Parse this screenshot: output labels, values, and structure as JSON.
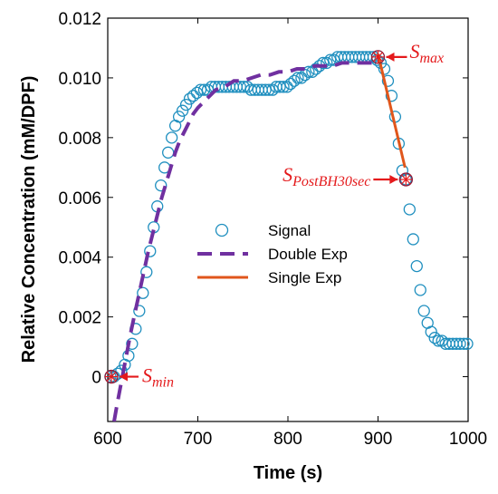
{
  "chart_data": {
    "type": "line",
    "xlabel": "Time (s)",
    "ylabel": "Relative Concentration (mM/DPF)",
    "xlim": [
      600,
      1000
    ],
    "ylim": [
      -0.0015,
      0.012
    ],
    "x_ticks": [
      600,
      700,
      800,
      900,
      1000
    ],
    "y_ticks": [
      0,
      0.002,
      0.004,
      0.006,
      0.008,
      0.01,
      0.012
    ],
    "y_tick_labels": [
      "0",
      "0.002",
      "0.004",
      "0.006",
      "0.008",
      "0.010",
      "0.012"
    ],
    "grid": false,
    "legend_position": "center",
    "series": [
      {
        "name": "Signal",
        "style": "circle-markers",
        "color": "#1f8fbf",
        "x": [
          603,
          607,
          611,
          615,
          619,
          623,
          627,
          631,
          635,
          639,
          643,
          647,
          651,
          655,
          659,
          663,
          667,
          671,
          675,
          679,
          683,
          687,
          691,
          695,
          699,
          703,
          707,
          711,
          715,
          719,
          723,
          727,
          731,
          735,
          739,
          743,
          747,
          751,
          755,
          759,
          763,
          767,
          771,
          775,
          779,
          783,
          787,
          791,
          795,
          799,
          803,
          807,
          811,
          815,
          819,
          823,
          827,
          831,
          835,
          839,
          843,
          847,
          851,
          855,
          859,
          863,
          867,
          871,
          875,
          879,
          883,
          887,
          891,
          895,
          899,
          903,
          907,
          911,
          915,
          919,
          923,
          927,
          931,
          935,
          939,
          943,
          947,
          951,
          955,
          959,
          963,
          967,
          971,
          975,
          979,
          983,
          987,
          991,
          995,
          999
        ],
        "y": [
          0.0,
          0.0,
          0.0001,
          0.0002,
          0.0004,
          0.0007,
          0.0011,
          0.0016,
          0.0022,
          0.0028,
          0.0035,
          0.0042,
          0.005,
          0.0057,
          0.0064,
          0.007,
          0.0075,
          0.008,
          0.0084,
          0.0087,
          0.0089,
          0.0091,
          0.0093,
          0.0094,
          0.0095,
          0.0096,
          0.0096,
          0.0096,
          0.0097,
          0.0097,
          0.0097,
          0.0097,
          0.0097,
          0.0097,
          0.0097,
          0.0097,
          0.0097,
          0.0097,
          0.0097,
          0.0096,
          0.0096,
          0.0096,
          0.0096,
          0.0096,
          0.0096,
          0.0096,
          0.0097,
          0.0097,
          0.0097,
          0.0097,
          0.0098,
          0.0099,
          0.01,
          0.01,
          0.0101,
          0.0102,
          0.0102,
          0.0103,
          0.0104,
          0.0105,
          0.0105,
          0.0106,
          0.0106,
          0.0107,
          0.0107,
          0.0107,
          0.0107,
          0.0107,
          0.0107,
          0.0107,
          0.0107,
          0.0107,
          0.0107,
          0.0107,
          0.0106,
          0.0105,
          0.0103,
          0.0099,
          0.0094,
          0.0087,
          0.0078,
          0.0069,
          0.0066,
          0.0056,
          0.0046,
          0.0037,
          0.0029,
          0.0022,
          0.0018,
          0.0015,
          0.0013,
          0.0012,
          0.0012,
          0.0011,
          0.0011,
          0.0011,
          0.0011,
          0.0011,
          0.0011,
          0.0011
        ]
      },
      {
        "name": "Double Exp",
        "style": "dashed-line",
        "color": "#7030a0",
        "x": [
          607,
          610,
          615,
          620,
          625,
          630,
          635,
          640,
          645,
          650,
          655,
          660,
          665,
          670,
          675,
          680,
          685,
          690,
          695,
          700,
          710,
          720,
          730,
          740,
          750,
          760,
          770,
          780,
          790,
          800,
          810,
          820,
          830,
          840,
          850,
          860,
          870,
          880,
          890,
          900
        ],
        "y": [
          -0.0015,
          -0.001,
          -0.0002,
          0.0006,
          0.0014,
          0.0021,
          0.0028,
          0.0035,
          0.0042,
          0.0048,
          0.0054,
          0.006,
          0.0065,
          0.007,
          0.0075,
          0.0079,
          0.0082,
          0.0085,
          0.0088,
          0.009,
          0.0093,
          0.0096,
          0.0097,
          0.0099,
          0.0099,
          0.01,
          0.0101,
          0.0101,
          0.0102,
          0.0102,
          0.0103,
          0.0103,
          0.0104,
          0.0104,
          0.0104,
          0.0105,
          0.0105,
          0.0105,
          0.0105,
          0.0105
        ]
      },
      {
        "name": "Single Exp",
        "style": "solid-line",
        "color": "#e0561b",
        "x": [
          900,
          930
        ],
        "y": [
          0.0108,
          0.007
        ]
      }
    ],
    "annotations": [
      {
        "id": "smin",
        "main": "S",
        "sub": "min",
        "x": 604,
        "y": 0.0,
        "arrow_dir": "left"
      },
      {
        "id": "smax",
        "main": "S",
        "sub": "max",
        "x": 900,
        "y": 0.0107,
        "arrow_dir": "left"
      },
      {
        "id": "spost",
        "main": "S",
        "sub": "PostBH30sec",
        "x": 931,
        "y": 0.0066,
        "arrow_dir": "right"
      }
    ],
    "annotation_color": "#e41a1c"
  }
}
